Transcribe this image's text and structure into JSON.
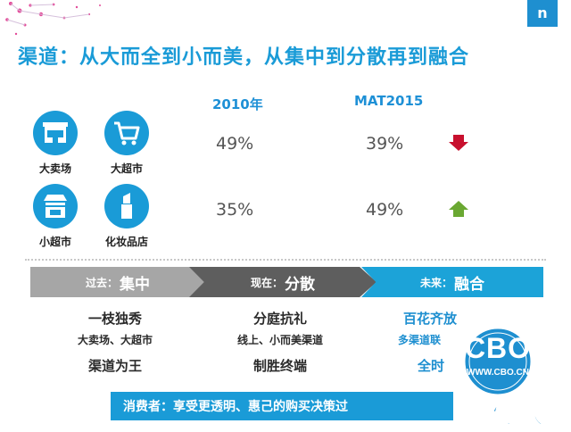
{
  "header": {
    "logo_text": "n"
  },
  "title": "渠道：从大而全到小而美，从集中到分散再到融合",
  "columns": {
    "year1": "2010年",
    "year2": "MAT2015"
  },
  "channels": [
    {
      "label": "大卖场",
      "icon": "storefront-icon"
    },
    {
      "label": "大超市",
      "icon": "shopping-cart-icon"
    },
    {
      "label": "小超市",
      "icon": "kiosk-icon"
    },
    {
      "label": "化妆品店",
      "icon": "lipstick-icon"
    }
  ],
  "rows": [
    {
      "v2010": "49%",
      "v2015": "39%",
      "trend": "down",
      "trend_color": "#c8102e"
    },
    {
      "v2010": "35%",
      "v2015": "49%",
      "trend": "up",
      "trend_color": "#6aa832"
    }
  ],
  "phases": [
    {
      "prefix": "过去：",
      "label": "集中",
      "color": "#a6a6a6"
    },
    {
      "prefix": "现在：",
      "label": "分散",
      "color": "#5e5e5e"
    },
    {
      "prefix": "未来：",
      "label": "融合",
      "color": "#1ca3d8"
    }
  ],
  "descriptions": [
    {
      "line1": "一枝独秀",
      "line2": "大卖场、大超市",
      "line3": "渠道为王"
    },
    {
      "line1": "分庭抗礼",
      "line2": "线上、小而美渠道",
      "line3": "制胜终端"
    },
    {
      "line1": "百花齐放",
      "line2": "多渠道联",
      "line3": "全时"
    }
  ],
  "bottom_bar": "消费者：享受更透明、惠己的购买决策过",
  "watermark": {
    "brand": "CBO",
    "url": "WWW.CBO.CN",
    "tagline": "手机报"
  },
  "colors": {
    "accent": "#1a9bd7",
    "brand": "#1e8fd0",
    "down": "#c8102e",
    "up": "#6aa832"
  }
}
